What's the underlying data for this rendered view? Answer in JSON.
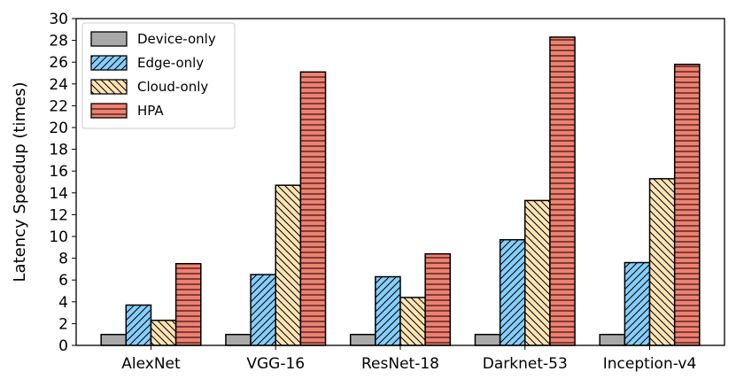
{
  "chart_data": {
    "type": "bar",
    "title": "",
    "xlabel": "",
    "ylabel": "Latency Speedup (times)",
    "ylim": [
      0,
      30
    ],
    "yticks": [
      0,
      2,
      4,
      6,
      8,
      10,
      12,
      14,
      16,
      18,
      20,
      22,
      24,
      26,
      28,
      30
    ],
    "categories": [
      "AlexNet",
      "VGG-16",
      "ResNet-18",
      "Darknet-53",
      "Inception-v4"
    ],
    "series": [
      {
        "name": "Device-only",
        "values": [
          1,
          1,
          1,
          1,
          1
        ],
        "color": "#a9a9a9",
        "hatch": "none"
      },
      {
        "name": "Edge-only",
        "values": [
          3.7,
          6.5,
          6.3,
          9.7,
          7.6
        ],
        "color": "#87cefa",
        "hatch": "forward"
      },
      {
        "name": "Cloud-only",
        "values": [
          2.3,
          14.7,
          4.4,
          13.3,
          15.3
        ],
        "color": "#ffe4b5",
        "hatch": "backward"
      },
      {
        "name": "HPA",
        "values": [
          7.5,
          25.1,
          8.4,
          28.3,
          25.8
        ],
        "color": "#f08070",
        "hatch": "horizontal"
      }
    ],
    "legend_position": "top-left",
    "grid": false
  }
}
